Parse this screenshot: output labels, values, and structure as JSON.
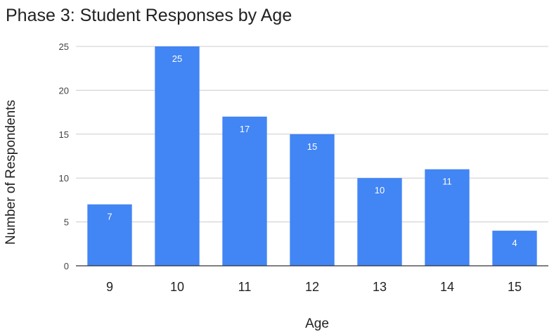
{
  "chart_data": {
    "type": "bar",
    "title": "Phase 3: Student Responses by Age",
    "xlabel": "Age",
    "ylabel": "Number of Respondents",
    "categories": [
      "9",
      "10",
      "11",
      "12",
      "13",
      "14",
      "15"
    ],
    "values": [
      7,
      25,
      17,
      15,
      10,
      11,
      4
    ],
    "data_labels": true,
    "ylim": [
      0,
      25
    ],
    "yticks": [
      0,
      5,
      10,
      15,
      20,
      25
    ],
    "grid": true,
    "legend": "none",
    "colors": {
      "bar": "#4285f4",
      "grid": "#cccccc",
      "axis": "#333333"
    }
  }
}
